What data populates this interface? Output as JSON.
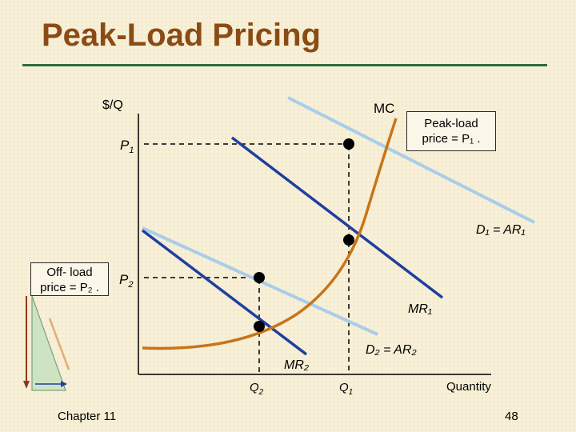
{
  "slide": {
    "title": "Peak-Load Pricing",
    "chapter": "Chapter 11",
    "page_number": "48"
  },
  "diagram": {
    "y_axis_label": "$/Q",
    "x_axis_label": "Quantity",
    "mc_label": "MC",
    "p1_main": "P",
    "p1_sub": "1",
    "p2_main": "P",
    "p2_sub": "2",
    "q1_main": "Q",
    "q1_sub": "1",
    "q2_main": "Q",
    "q2_sub": "2",
    "d1_label": "D₁ = AR₁",
    "mr1_label": "MR₁",
    "d2_label": "D₂ = AR₂",
    "mr2_label": "MR₂",
    "peak_callout_line1": "Peak-load",
    "peak_callout_line2": "price = P₁ .",
    "offpeak_callout_line1": "Off- load",
    "offpeak_callout_line2": "price = P₂ .",
    "colors": {
      "demand": "#a9cdea",
      "marginal_revenue": "#1f3fa0",
      "marginal_cost": "#c9741a",
      "dashed": "#000000",
      "title": "#8a4b14",
      "rule": "#2f6b3a"
    }
  }
}
